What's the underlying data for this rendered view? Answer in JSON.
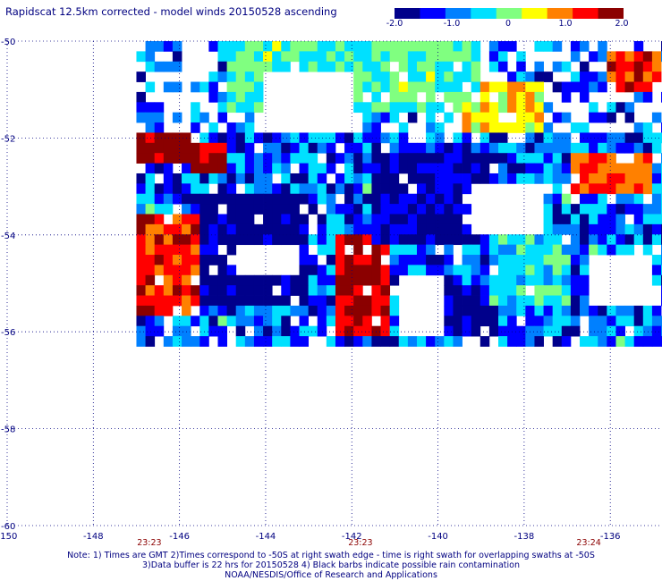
{
  "title": "Rapidscat 12.5km corrected - model winds 20150528 ascending",
  "colorbar": {
    "ticks": [
      "-2.0",
      "-1.0",
      "0",
      "1.0",
      "2.0"
    ],
    "colors": [
      "#00008b",
      "#0000ff",
      "#0080ff",
      "#00e0ff",
      "#80ff80",
      "#ffff00",
      "#ff8000",
      "#ff0000",
      "#8b0000"
    ]
  },
  "notes": [
    "Note: 1) Times are GMT 2)Times correspond to -50S at right swath edge - time is right swath for overlapping swaths at -50S",
    "3)Data buffer is 22 hrs for 20150528 4) Black barbs indicate possible rain contamination",
    "NOAA/NESDIS/Office of Research and Applications"
  ],
  "chart_data": {
    "type": "heatmap",
    "title": "Rapidscat 12.5km corrected - model winds 20150528 ascending",
    "xlabel": "",
    "ylabel": "",
    "xlim": [
      -150,
      -134.8
    ],
    "ylim": [
      -60,
      -50
    ],
    "x_ticks": [
      "-150",
      "-148",
      "-146",
      "-144",
      "-142",
      "-140",
      "-138",
      "-136"
    ],
    "y_ticks": [
      "-50",
      "-52",
      "-54",
      "-56",
      "-58",
      "-60"
    ],
    "colorbar_range": [
      -2.0,
      2.0
    ],
    "time_labels": [
      {
        "lon": -146.7,
        "text": "23:23"
      },
      {
        "lon": -141.8,
        "text": "23:23"
      },
      {
        "lon": -136.5,
        "text": "23:24"
      }
    ],
    "grid": true,
    "cell_size_deg": [
      0.21,
      0.21
    ],
    "swath_extent": {
      "lon": [
        -147.0,
        -134.8
      ],
      "lat": [
        -56.3,
        -50.0
      ]
    },
    "regions": [
      {
        "lon": [
          -147.0,
          -145.6
        ],
        "lat": [
          -55.6,
          -53.6
        ],
        "value": 1.3
      },
      {
        "lon": [
          -147.0,
          -145.8
        ],
        "lat": [
          -52.6,
          -51.8
        ],
        "value": 1.9
      },
      {
        "lon": [
          -145.8,
          -145.0
        ],
        "lat": [
          -52.8,
          -52.0
        ],
        "value": 1.5
      },
      {
        "lon": [
          -142.4,
          -141.2
        ],
        "lat": [
          -56.0,
          -54.0
        ],
        "value": 1.6
      },
      {
        "lon": [
          -145.5,
          -143.0
        ],
        "lat": [
          -55.5,
          -53.2
        ],
        "value": -1.9
      },
      {
        "lon": [
          -141.5,
          -138.5
        ],
        "lat": [
          -54.1,
          -52.4
        ],
        "value": -1.7
      },
      {
        "lon": [
          -140.5,
          -138.5
        ],
        "lat": [
          -56.0,
          -55.0
        ],
        "value": -1.8
      },
      {
        "lon": [
          -138.8,
          -137.0
        ],
        "lat": [
          -55.5,
          -53.8
        ],
        "value": -0.4
      },
      {
        "lon": [
          -137.0,
          -135.0
        ],
        "lat": [
          -53.2,
          -52.4
        ],
        "value": 1.0
      },
      {
        "lon": [
          -139.5,
          -137.5
        ],
        "lat": [
          -51.8,
          -50.8
        ],
        "value": 0.5
      },
      {
        "lon": [
          -136.0,
          -134.8
        ],
        "lat": [
          -51.0,
          -50.2
        ],
        "value": 1.3
      },
      {
        "lon": [
          -145.0,
          -139.0
        ],
        "lat": [
          -51.5,
          -50.0
        ],
        "value": -0.2
      }
    ],
    "gaps": [
      {
        "lon": [
          -141.0,
          -139.8
        ],
        "lat": [
          -56.0,
          -54.8
        ]
      },
      {
        "lon": [
          -139.2,
          -137.6
        ],
        "lat": [
          -53.9,
          -53.0
        ]
      },
      {
        "lon": [
          -136.4,
          -135.0
        ],
        "lat": [
          -55.4,
          -54.4
        ]
      },
      {
        "lon": [
          -144.6,
          -143.2
        ],
        "lat": [
          -54.9,
          -54.1
        ]
      },
      {
        "lon": [
          -144.0,
          -142.0
        ],
        "lat": [
          -51.9,
          -50.6
        ]
      }
    ]
  }
}
